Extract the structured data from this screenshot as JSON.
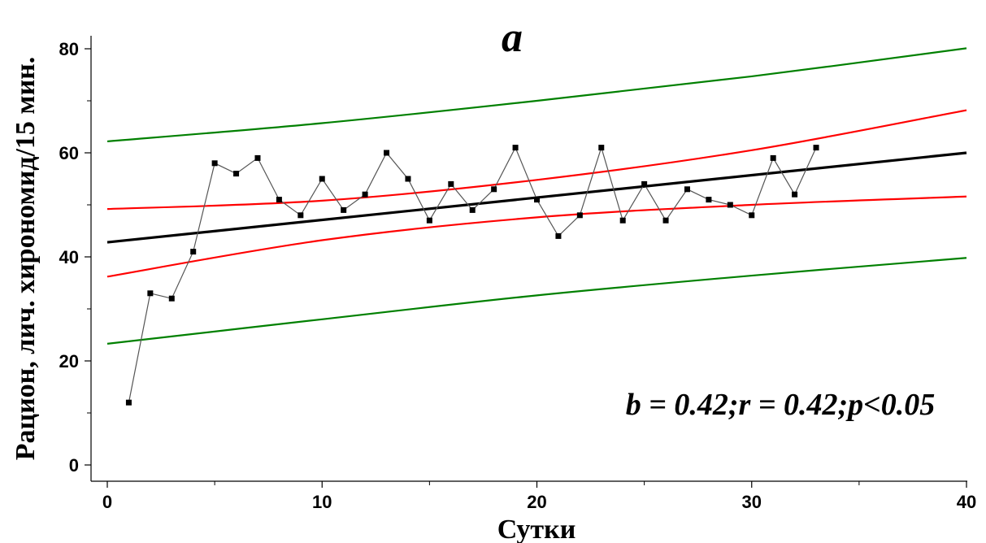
{
  "chart_data": {
    "type": "scatter",
    "title": "a",
    "xlabel": "Сутки",
    "ylabel": "Рацион, лич. хирономид/15 мин.",
    "xlim": [
      0,
      40
    ],
    "ylim": [
      0,
      80
    ],
    "x_ticks": [
      "0",
      "10",
      "20",
      "30",
      "40"
    ],
    "y_ticks": [
      "0",
      "20",
      "40",
      "60",
      "80"
    ],
    "annotation": "b = 0.42;r = 0.42;p<0.05",
    "grid": false,
    "colors": {
      "observed": "#000000",
      "connector": "#555555",
      "regression": "#000000",
      "confidence_band": "#ff0000",
      "prediction_band": "#008000"
    },
    "observed": {
      "x": [
        1,
        2,
        3,
        4,
        5,
        6,
        7,
        8,
        9,
        10,
        11,
        12,
        13,
        14,
        15,
        16,
        17,
        18,
        19,
        20,
        21,
        22,
        23,
        24,
        25,
        26,
        27,
        28,
        29,
        30,
        31,
        32,
        33
      ],
      "y": [
        12,
        33,
        32,
        41,
        58,
        56,
        59,
        51,
        48,
        55,
        49,
        52,
        60,
        55,
        47,
        54,
        49,
        53,
        61,
        51,
        44,
        48,
        61,
        47,
        54,
        47,
        53,
        51,
        50,
        48,
        59,
        52,
        61
      ]
    },
    "regression_line": {
      "x": [
        0,
        40
      ],
      "y": [
        42.8,
        60.0
      ]
    },
    "confidence_upper": {
      "x": [
        0,
        10,
        20,
        30,
        40
      ],
      "y": [
        49.2,
        50.8,
        54.8,
        60.5,
        68.2
      ]
    },
    "confidence_lower": {
      "x": [
        0,
        10,
        20,
        30,
        40
      ],
      "y": [
        36.2,
        43.2,
        47.6,
        50.0,
        51.6
      ]
    },
    "prediction_upper": {
      "x": [
        0,
        10,
        20,
        30,
        40
      ],
      "y": [
        62.2,
        65.7,
        70.0,
        74.7,
        80.1
      ]
    },
    "prediction_lower": {
      "x": [
        0,
        10,
        20,
        30,
        40
      ],
      "y": [
        23.3,
        28.0,
        32.6,
        36.4,
        39.8
      ]
    }
  }
}
